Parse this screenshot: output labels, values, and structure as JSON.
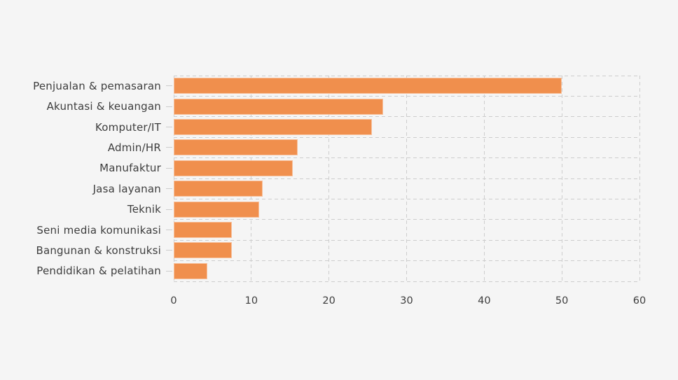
{
  "background_color": "#f5f5f5",
  "chart_data": {
    "type": "bar",
    "orientation": "horizontal",
    "title": "",
    "xlabel": "",
    "ylabel": "",
    "categories": [
      "Penjualan & pemasaran",
      "Akuntasi & keuangan",
      "Komputer/IT",
      "Admin/HR",
      "Manufaktur",
      "Jasa layanan",
      "Teknik",
      "Seni media komunikasi",
      "Bangunan & konstruksi",
      "Pendidikan & pelatihan"
    ],
    "values": [
      50,
      27,
      25.5,
      16,
      15.3,
      11.5,
      11,
      7.5,
      7.5,
      4.3
    ],
    "xlim": [
      0,
      60
    ],
    "x_ticks": [
      0,
      10,
      20,
      30,
      40,
      50,
      60
    ],
    "grid": "dashed-both-axes",
    "legend": "none",
    "bar_color": "#f08f4d",
    "grid_color": "#cdcdcd",
    "text_color": "#3d3d3d"
  }
}
